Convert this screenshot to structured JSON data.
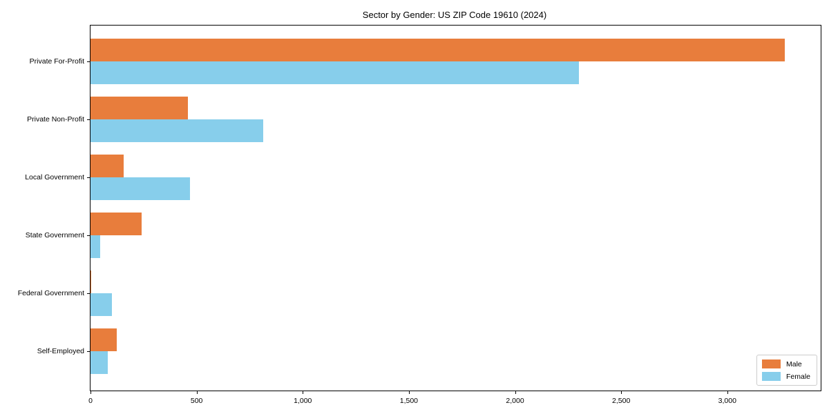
{
  "title": "Sector by Gender: US ZIP Code 19610 (2024)",
  "colors": {
    "male": "#E87D3C",
    "female": "#87CEEB",
    "axis": "#000000",
    "legend_border": "#CCCCCC",
    "background": "#FFFFFF"
  },
  "legend": {
    "position": "lower right",
    "items": [
      {
        "label": "Male",
        "color": "#E87D3C"
      },
      {
        "label": "Female",
        "color": "#87CEEB"
      }
    ]
  },
  "chart_data": {
    "type": "bar",
    "orientation": "horizontal",
    "title": "Sector by Gender: US ZIP Code 19610 (2024)",
    "categories": [
      "Private For-Profit",
      "Private Non-Profit",
      "Local Government",
      "State Government",
      "Federal Government",
      "Self-Employed"
    ],
    "series": [
      {
        "name": "Male",
        "color": "#E87D3C",
        "values": [
          3270,
          460,
          155,
          240,
          4,
          125
        ]
      },
      {
        "name": "Female",
        "color": "#87CEEB",
        "values": [
          2300,
          815,
          470,
          45,
          100,
          80
        ]
      }
    ],
    "xlabel": "",
    "ylabel": "",
    "xlim": [
      0,
      3440
    ],
    "xticks": [
      0,
      500,
      1000,
      1500,
      2000,
      2500,
      3000
    ],
    "xtick_labels": [
      "0",
      "500",
      "1,000",
      "1,500",
      "2,000",
      "2,500",
      "3,000"
    ],
    "grid": false,
    "legend_position": "lower right"
  }
}
